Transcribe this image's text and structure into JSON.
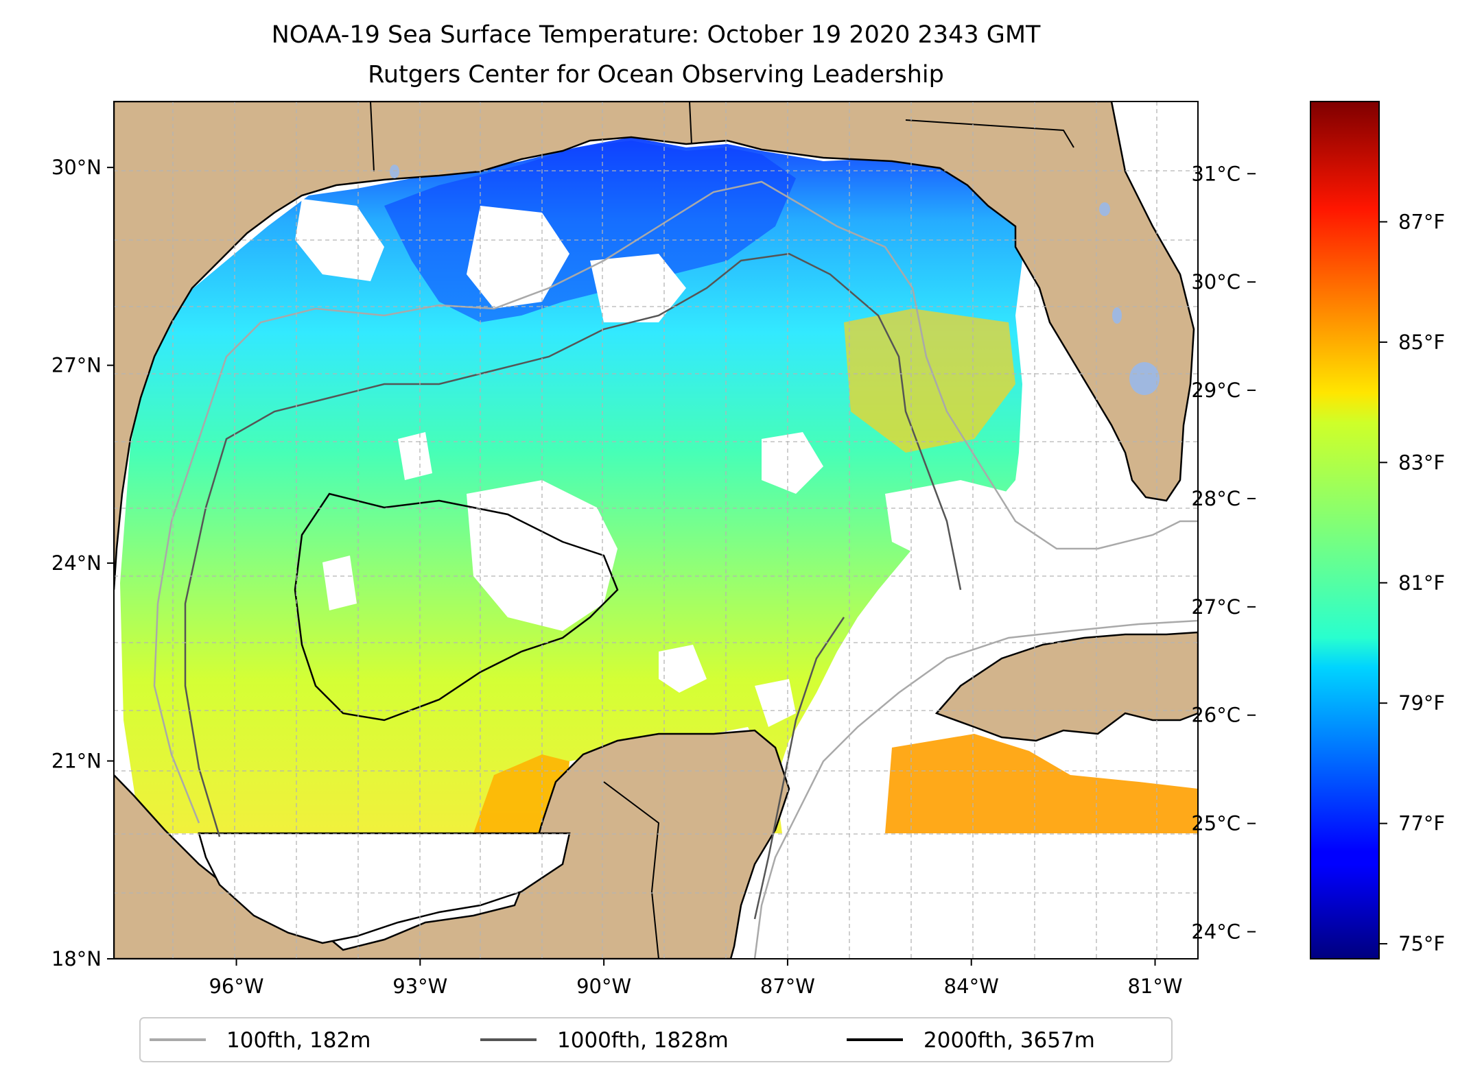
{
  "title": {
    "line1": "NOAA-19 Sea Surface Temperature: October 19 2020 2343 GMT",
    "line2": "Rutgers Center for Ocean Observing Leadership"
  },
  "map": {
    "lon_range": [
      -98.0,
      -80.3
    ],
    "lat_range": [
      18.0,
      31.0
    ],
    "lat_ticks": [
      {
        "value": 30,
        "label": "30°N"
      },
      {
        "value": 27,
        "label": "27°N"
      },
      {
        "value": 24,
        "label": "24°N"
      },
      {
        "value": 21,
        "label": "21°N"
      },
      {
        "value": 18,
        "label": "18°N"
      }
    ],
    "lon_ticks": [
      {
        "value": -96,
        "label": "96°W"
      },
      {
        "value": -93,
        "label": "93°W"
      },
      {
        "value": -90,
        "label": "90°W"
      },
      {
        "value": -87,
        "label": "87°W"
      },
      {
        "value": -84,
        "label": "84°W"
      },
      {
        "value": -81,
        "label": "81°W"
      }
    ],
    "colors": {
      "land": "#d2b48c",
      "lakes": "#9fb8e0",
      "grid": "#b4b4b4",
      "contour_100": "#a9a9a9",
      "contour_1000": "#555555",
      "contour_2000": "#000000"
    }
  },
  "colorbar": {
    "celsius_ticks": [
      {
        "value": 31,
        "label": "31°C"
      },
      {
        "value": 30,
        "label": "30°C"
      },
      {
        "value": 29,
        "label": "29°C"
      },
      {
        "value": 28,
        "label": "28°C"
      },
      {
        "value": 27,
        "label": "27°C"
      },
      {
        "value": 26,
        "label": "26°C"
      },
      {
        "value": 25,
        "label": "25°C"
      },
      {
        "value": 24,
        "label": "24°C"
      }
    ],
    "fahrenheit_ticks": [
      {
        "value": 87,
        "label": "87°F"
      },
      {
        "value": 85,
        "label": "85°F"
      },
      {
        "value": 83,
        "label": "83°F"
      },
      {
        "value": 81,
        "label": "81°F"
      },
      {
        "value": 79,
        "label": "79°F"
      },
      {
        "value": 77,
        "label": "77°F"
      },
      {
        "value": 75,
        "label": "75°F"
      }
    ],
    "range_f": [
      74.75,
      89.0
    ],
    "colormap": "jet"
  },
  "legend": [
    {
      "label": "100fth, 182m",
      "color": "#a9a9a9"
    },
    {
      "label": "1000fth, 1828m",
      "color": "#555555"
    },
    {
      "label": "2000fth, 3657m",
      "color": "#000000"
    }
  ]
}
